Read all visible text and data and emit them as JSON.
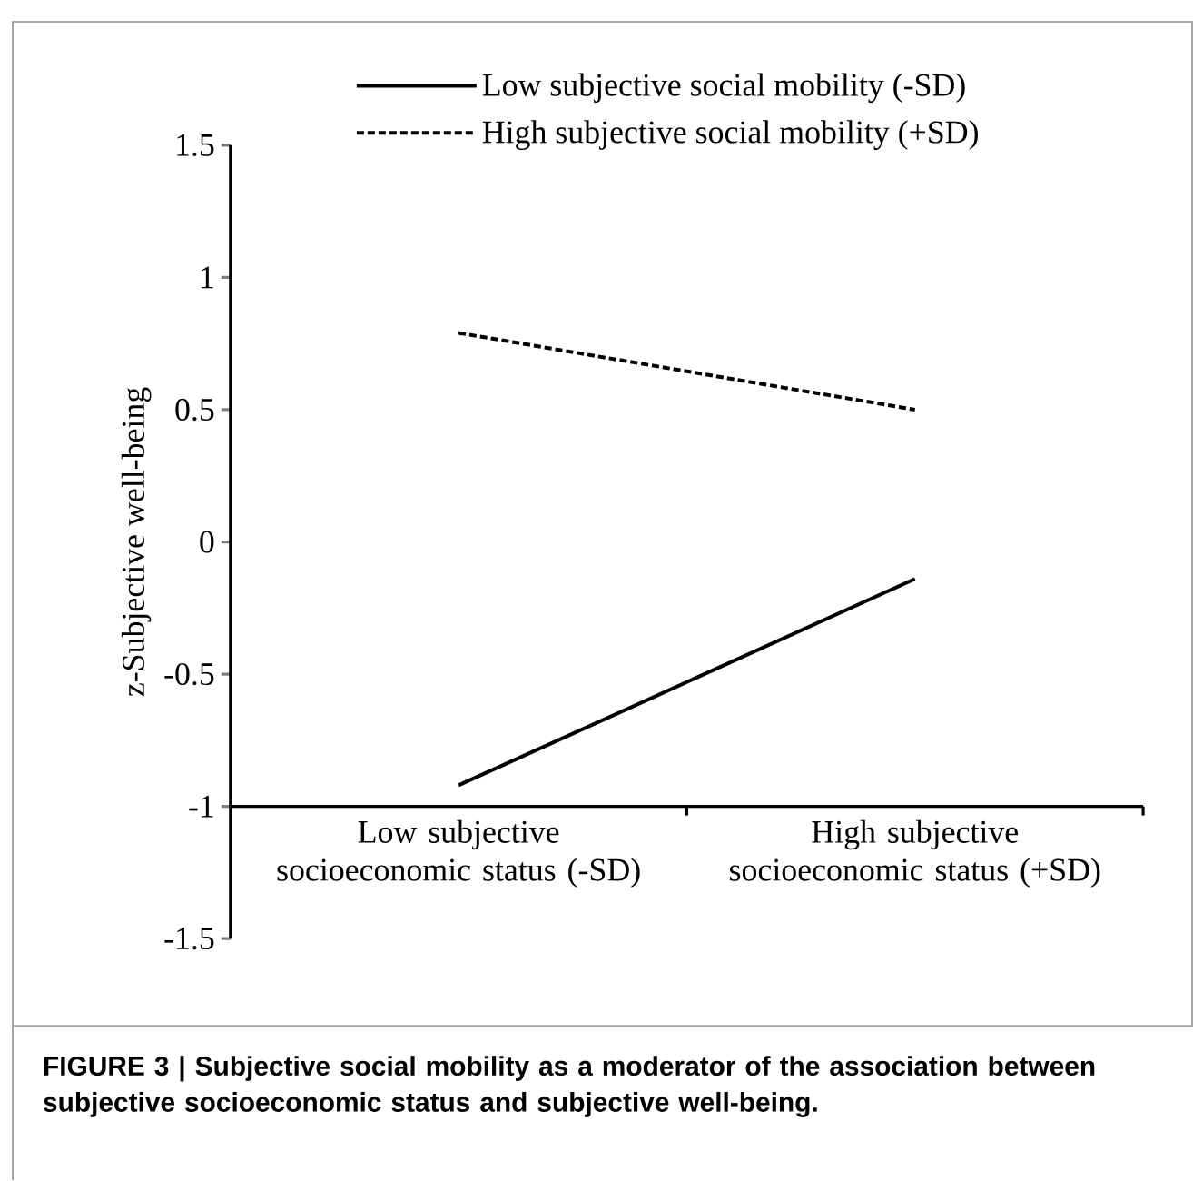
{
  "chart_data": {
    "type": "line",
    "ylabel": "z-Subjective well-being",
    "categories": [
      "Low subjective socioeconomic status (-SD)",
      "High subjective socioeconomic status (+SD)"
    ],
    "series": [
      {
        "name": "Low subjective social mobility (-SD)",
        "color": "#000000",
        "line_style": "solid",
        "values": [
          -0.92,
          -0.14
        ]
      },
      {
        "name": "High subjective social mobility (+SD)",
        "color": "#000000",
        "line_style": "dashed",
        "values": [
          0.79,
          0.5
        ]
      }
    ],
    "ylim": [
      -1.5,
      1.5
    ],
    "yticks": [
      -1.5,
      -1,
      -0.5,
      0,
      0.5,
      1,
      1.5
    ],
    "legend": "top",
    "grid": false,
    "marker": "none",
    "annotations": [
      "FIGURE 3 | Subjective social mobility as a moderator of the association between subjective socioeconomic status and subjective well-being."
    ]
  }
}
